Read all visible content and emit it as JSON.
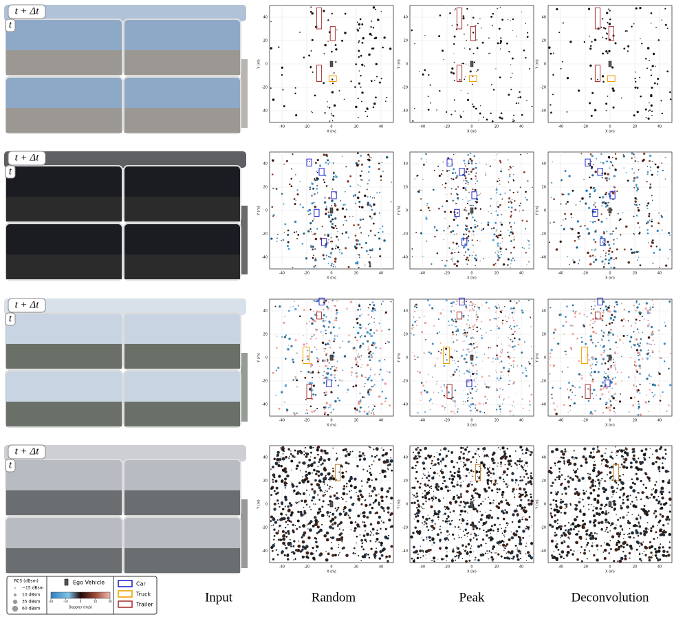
{
  "rows": [
    {
      "next": "t + Δt",
      "now": "t"
    },
    {
      "next": "t + Δt",
      "now": "t"
    },
    {
      "next": "t + Δt",
      "now": "t"
    },
    {
      "next": "t + Δt",
      "now": "t"
    }
  ],
  "columns": [
    "Input",
    "Random",
    "Peak",
    "Deconvolution"
  ],
  "plot": {
    "xlabel": "X (m)",
    "ylabel": "Y (m)",
    "xticks": [
      -40,
      -20,
      0,
      20,
      40
    ],
    "yticks": [
      -40,
      -20,
      0,
      20,
      40
    ]
  },
  "legend": {
    "rcs_title": "RCS (dBsm)",
    "rcs": [
      "−15 dBsm",
      "10 dBsm",
      "35 dBsm",
      "60 dBsm"
    ],
    "ego": "Ego Vehicle",
    "doppler_label": "Doppler (m/s)",
    "doppler_ticks": [
      -20,
      -10,
      0,
      10,
      20
    ],
    "classes": [
      "Car",
      "Truck",
      "Trailer"
    ]
  }
}
